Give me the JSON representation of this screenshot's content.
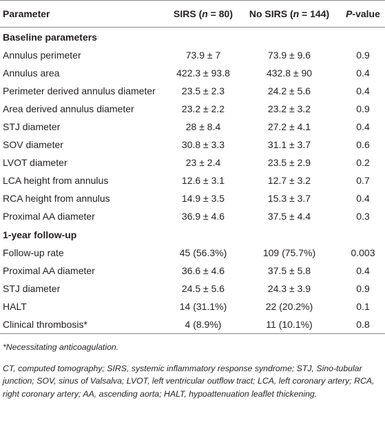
{
  "table": {
    "header": [
      [
        "Parameter"
      ],
      [
        "SIRS (",
        "n",
        " = 80)"
      ],
      [
        "No SIRS (",
        "n",
        " = 144)"
      ],
      [
        "P",
        "-value"
      ]
    ],
    "sections": [
      {
        "title": "Baseline parameters",
        "rows": [
          [
            "Annulus perimeter",
            "73.9 ± 7",
            "73.9 ± 9.6",
            "0.9"
          ],
          [
            "Annulus area",
            "422.3 ± 93.8",
            "432.8 ± 90",
            "0.4"
          ],
          [
            "Perimeter derived annulus diameter",
            "23.5 ± 2.3",
            "24.2 ± 5.6",
            "0.4"
          ],
          [
            "Area derived annulus diameter",
            "23.2 ± 2.2",
            "23.2 ± 3.2",
            "0.9"
          ],
          [
            "STJ diameter",
            "28 ± 8.4",
            "27.2 ± 4.1",
            "0.4"
          ],
          [
            "SOV diameter",
            "30.8 ± 3.3",
            "31.1 ± 3.7",
            "0.6"
          ],
          [
            "LVOT diameter",
            "23 ± 2.4",
            "23.5 ± 2.9",
            "0.2"
          ],
          [
            "LCA height from annulus",
            "12.6 ± 3.1",
            "12.7 ± 3.2",
            "0.7"
          ],
          [
            "RCA height from annulus",
            "14.9 ± 3.5",
            "15.3 ± 3.7",
            "0.4"
          ],
          [
            "Proximal AA diameter",
            "36.9 ± 4.6",
            "37.5 ± 4.4",
            "0.3"
          ]
        ]
      },
      {
        "title": "1-year follow-up",
        "rows": [
          [
            "Follow-up rate",
            "45 (56.3%)",
            "109 (75.7%)",
            "0.003"
          ],
          [
            "Proximal AA diameter",
            "36.6 ± 4.6",
            "37.5 ± 5.8",
            "0.4"
          ],
          [
            "STJ diameter",
            "24.5 ± 5.6",
            "24.3 ± 3.9",
            "0.9"
          ],
          [
            "HALT",
            "14 (31.1%)",
            "22 (20.2%)",
            "0.1"
          ],
          [
            "Clinical thrombosis*",
            "4 (8.9%)",
            "11 (10.1%)",
            "0.8"
          ]
        ]
      }
    ],
    "notes": [
      "*Necessitating anticoagulation.",
      "CT, computed tomography; SIRS, systemic inflammatory response syndrome; STJ, Sino-tubular junction; SOV, sinus of Valsalva; LVOT, left ventricular outflow tract; LCA, left coronary artery; RCA, right coronary artery; AA, ascending aorta; HALT, hypoattenuation leaflet thickening."
    ]
  }
}
